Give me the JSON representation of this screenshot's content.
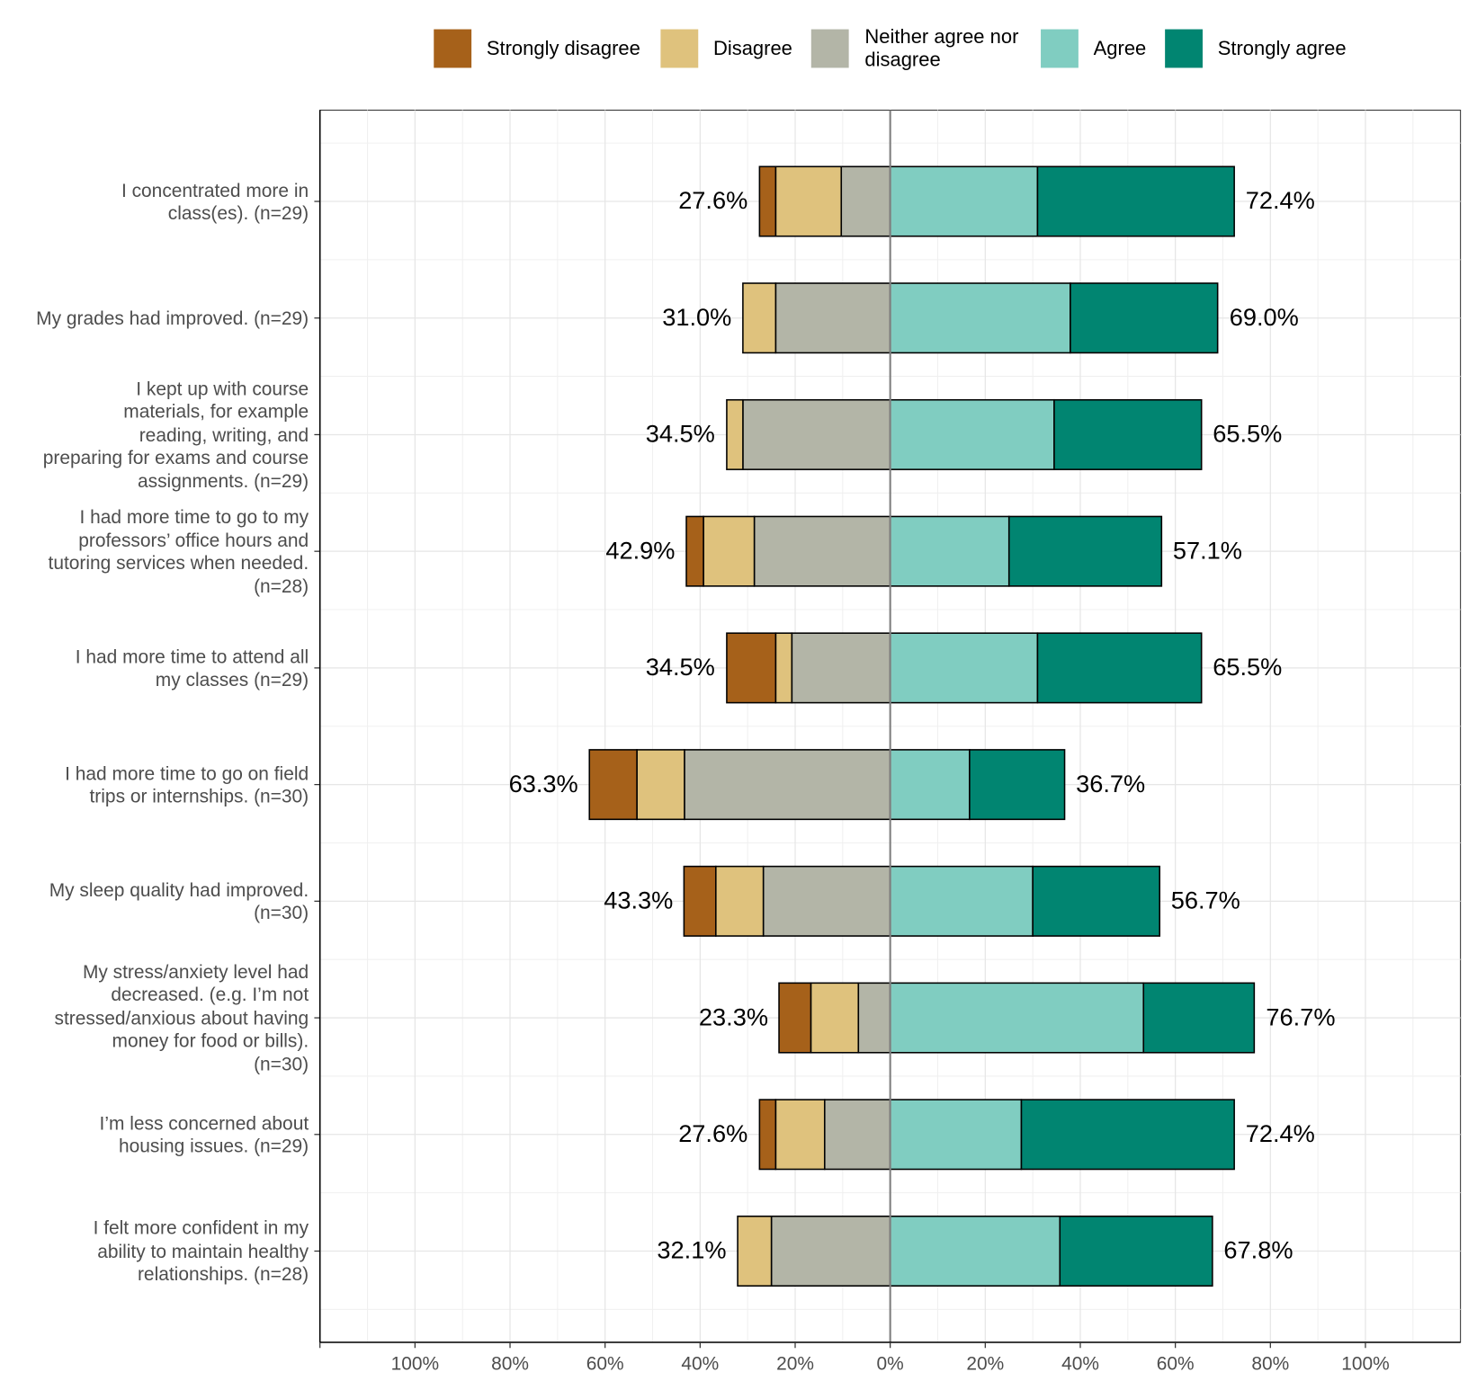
{
  "chart_data": {
    "type": "diverging_stacked_bar",
    "categories": [
      "I concentrated more in\nclass(es). (n=29)",
      "My grades had improved. (n=29)",
      "I kept up with course\nmaterials, for example\nreading, writing, and\npreparing for exams and course\nassignments. (n=29)",
      "I had more time to go to my\nprofessors’ office hours and\ntutoring services when needed.\n(n=28)",
      "I had more time to attend all\nmy classes (n=29)",
      "I had more time to go on field\ntrips or internships. (n=30)",
      "My sleep quality had improved.\n(n=30)",
      "My stress/anxiety level had\ndecreased. (e.g. I’m not\nstressed/anxious about having\nmoney for food or bills).\n(n=30)",
      "I’m less concerned about\nhousing issues. (n=29)",
      "I felt more confident in my\nability to maintain healthy\nrelationships. (n=28)"
    ],
    "series": [
      {
        "name": "Strongly disagree",
        "color": "#a6611a",
        "values": [
          -3.4,
          0,
          0,
          -3.6,
          -10.3,
          -10.0,
          -6.7,
          -6.7,
          -3.4,
          0
        ]
      },
      {
        "name": "Disagree",
        "color": "#dfc27d",
        "values": [
          -13.8,
          -6.9,
          -3.4,
          -10.7,
          -3.4,
          -10.0,
          -10.0,
          -10.0,
          -10.3,
          -7.1
        ]
      },
      {
        "name": "Neither agree nor\ndisagree",
        "color": "#b3b5a7",
        "values": [
          -10.3,
          -24.1,
          -31.0,
          -28.6,
          -20.7,
          -43.3,
          -26.7,
          -6.7,
          -13.8,
          -25.0
        ]
      },
      {
        "name": "Agree",
        "color": "#80cdc1",
        "values": [
          31.0,
          37.9,
          34.5,
          25.0,
          31.0,
          16.7,
          30.0,
          53.3,
          27.6,
          35.7
        ]
      },
      {
        "name": "Strongly agree",
        "color": "#018571",
        "values": [
          41.4,
          31.0,
          31.0,
          32.1,
          34.5,
          20.0,
          26.7,
          23.3,
          44.8,
          32.1
        ]
      }
    ],
    "totals": {
      "negative": {
        "values": [
          -27.6,
          -31.0,
          -34.5,
          -42.9,
          -34.5,
          -63.3,
          -43.3,
          -23.3,
          -27.6,
          -32.1
        ],
        "value_labels": [
          "27.6%",
          "31.0%",
          "34.5%",
          "42.9%",
          "34.5%",
          "63.3%",
          "43.3%",
          "23.3%",
          "27.6%",
          "32.1%"
        ]
      },
      "positive": {
        "values": [
          72.4,
          69.0,
          65.5,
          57.1,
          65.5,
          36.7,
          56.7,
          76.7,
          72.4,
          67.8
        ],
        "value_labels": [
          "72.4%",
          "69.0%",
          "65.5%",
          "57.1%",
          "65.5%",
          "36.7%",
          "56.7%",
          "76.7%",
          "72.4%",
          "67.8%"
        ]
      }
    },
    "xlim": [
      -120,
      120
    ],
    "xticks": [
      {
        "value": -100,
        "label": "100%"
      },
      {
        "value": -80,
        "label": "80%"
      },
      {
        "value": -60,
        "label": "60%"
      },
      {
        "value": -40,
        "label": "40%"
      },
      {
        "value": -20,
        "label": "20%"
      },
      {
        "value": 0,
        "label": "0%"
      },
      {
        "value": 20,
        "label": "20%"
      },
      {
        "value": 40,
        "label": "40%"
      },
      {
        "value": 60,
        "label": "60%"
      },
      {
        "value": 80,
        "label": "80%"
      },
      {
        "value": 100,
        "label": "100%"
      }
    ],
    "grid": true,
    "legend": "top"
  }
}
